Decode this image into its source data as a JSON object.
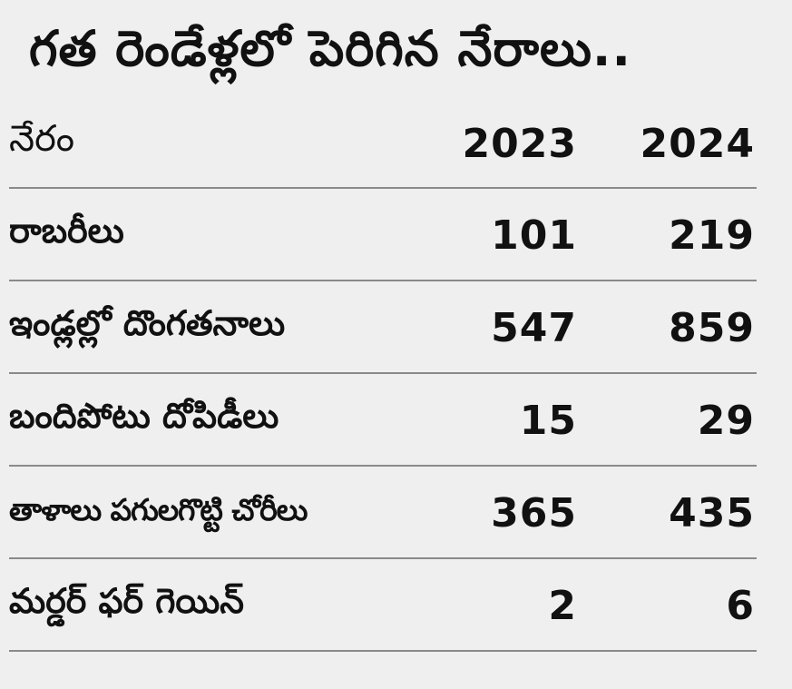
{
  "title": "గత రెండేళ్లలో పెరిగిన నేరాలు..",
  "table": {
    "headers": {
      "crime": "నేరం",
      "y2023": "2023",
      "y2024": "2024"
    },
    "rows": [
      {
        "crime": "రాబరీలు",
        "y2023": "101",
        "y2024": "219"
      },
      {
        "crime": "ఇండ్లల్లో  దొంగతనాలు",
        "y2023": "547",
        "y2024": "859"
      },
      {
        "crime": "బందిపోటు దోపిడీలు",
        "y2023": "15",
        "y2024": "29"
      },
      {
        "crime": "తాళాలు పగులగొట్టి చోరీలు",
        "y2023": "365",
        "y2024": "435"
      },
      {
        "crime": "మర్డర్ ఫర్ గెయిన్",
        "y2023": "2",
        "y2024": "6"
      }
    ]
  }
}
